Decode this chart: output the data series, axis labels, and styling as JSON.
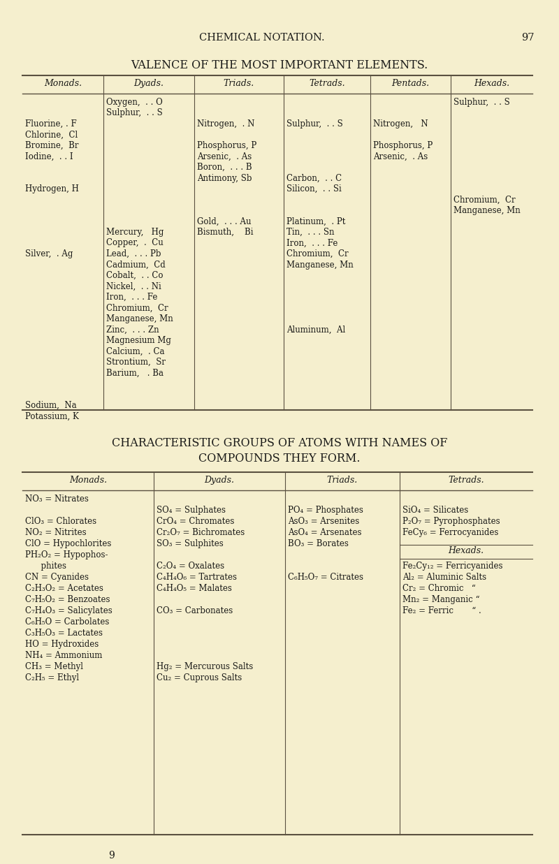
{
  "bg_color": "#f5efce",
  "text_color": "#1a1a18",
  "line_color": "#5a5040",
  "page_header": "CHEMICAL NOTATION.",
  "page_number": "97",
  "table1_title": "VALENCE OF THE MOST IMPORTANT ELEMENTS.",
  "table1_headers": [
    "Monads.",
    "Dyads.",
    "Triads.",
    "Tetrads.",
    "Pentads.",
    "Hexads."
  ],
  "table2_title": "CHARACTERISTIC GROUPS OF ATOMS WITH NAMES OF",
  "table2_subtitle": "COMPOUNDS THEY FORM.",
  "table2_headers": [
    "Monads.",
    "Dyads.",
    "Triads.",
    "Tetrads."
  ],
  "footer_number": "9"
}
